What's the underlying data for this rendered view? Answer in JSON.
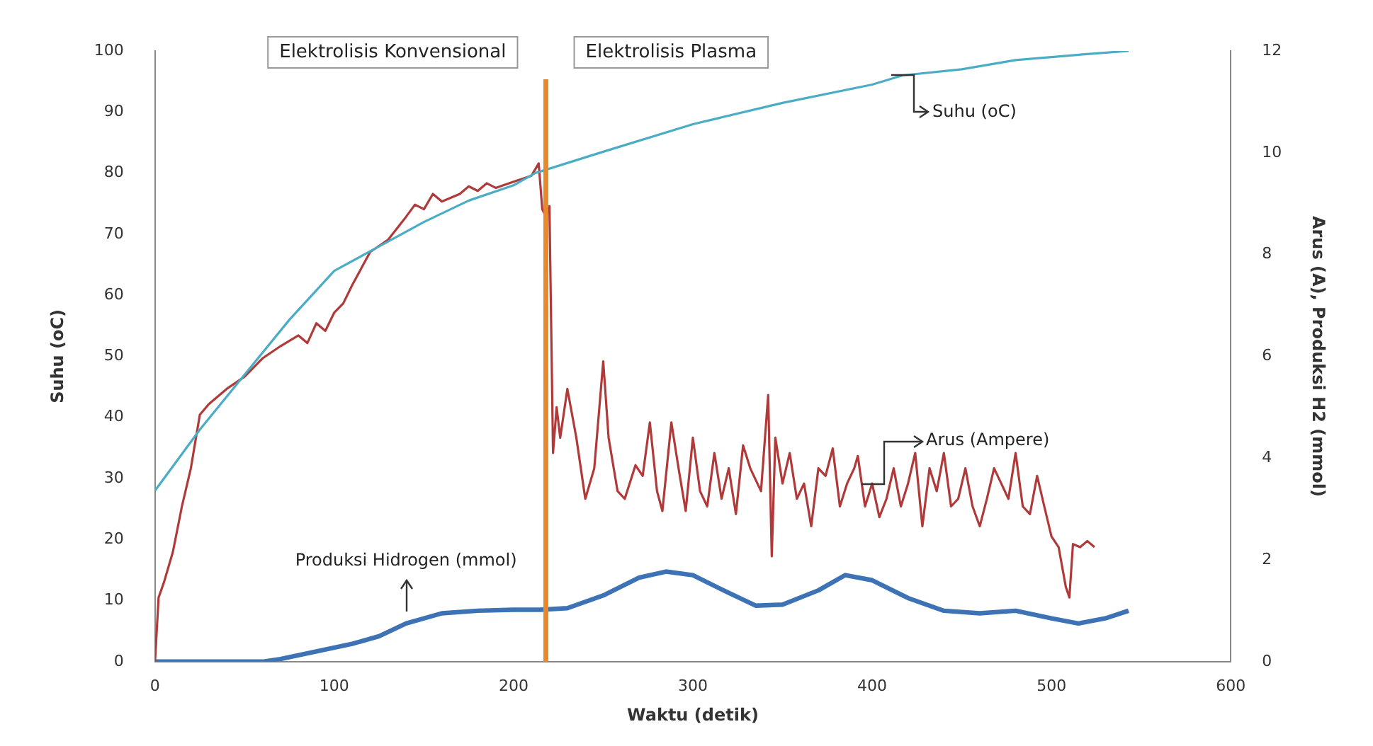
{
  "chart_data": {
    "type": "line",
    "xlabel": "Waktu (detik)",
    "ylabel": "Suhu (oC)",
    "y2label": "Arus (A), Produksi H2 (mmol)",
    "xlim": [
      0,
      600
    ],
    "xticks": [
      0,
      100,
      200,
      300,
      400,
      500,
      600
    ],
    "ylim": [
      0,
      100
    ],
    "yticks": [
      0,
      10,
      20,
      30,
      40,
      50,
      60,
      70,
      80,
      90,
      100
    ],
    "y2lim": [
      0,
      12
    ],
    "y2ticks": [
      0,
      2,
      4,
      6,
      8,
      10,
      12
    ],
    "grid": false,
    "legend": false,
    "marker": "none",
    "line_style": "solid",
    "annotations": [
      "Elektrolisis Konvensional",
      "Elektrolisis Plasma"
    ],
    "ref_lines": [
      {
        "axis": "x",
        "value": 218,
        "color": "#e8892c"
      }
    ],
    "series": [
      {
        "name": "Suhu (oC)",
        "color": "#4bacc6",
        "x": [
          0,
          25,
          50,
          75,
          100,
          125,
          150,
          175,
          200,
          212,
          250,
          300,
          350,
          400,
          417,
          450,
          480,
          500,
          520,
          543
        ],
        "values": [
          28,
          38,
          47,
          56,
          64,
          68,
          72,
          75.5,
          78,
          80,
          83.5,
          88,
          91.5,
          94.5,
          96,
          97,
          98.5,
          99,
          99.5,
          100
        ]
      },
      {
        "name": "Arus (Ampere)",
        "color": "#b03a3a",
        "axis": "y2",
        "x": [
          0,
          2,
          5,
          10,
          15,
          20,
          25,
          30,
          40,
          50,
          60,
          70,
          80,
          85,
          90,
          95,
          100,
          105,
          110,
          120,
          130,
          140,
          145,
          150,
          155,
          160,
          170,
          175,
          180,
          185,
          190,
          200,
          210,
          214,
          216,
          218,
          220,
          222,
          224,
          226,
          230,
          235,
          240,
          245,
          250,
          253,
          258,
          262,
          268,
          272,
          276,
          280,
          283,
          288,
          292,
          296,
          300,
          304,
          308,
          312,
          316,
          320,
          324,
          328,
          332,
          336,
          338,
          342,
          344,
          346,
          350,
          354,
          358,
          362,
          366,
          370,
          374,
          378,
          382,
          386,
          390,
          392,
          396,
          400,
          404,
          408,
          412,
          416,
          420,
          424,
          428,
          432,
          436,
          440,
          444,
          448,
          452,
          456,
          460,
          464,
          468,
          472,
          476,
          480,
          484,
          488,
          492,
          496,
          500,
          504,
          508,
          510,
          512,
          516,
          520,
          524
        ],
        "values": [
          0,
          1.26,
          1.56,
          2.16,
          3.05,
          3.8,
          4.85,
          5.06,
          5.36,
          5.6,
          5.96,
          6.2,
          6.41,
          6.26,
          6.65,
          6.5,
          6.86,
          7.04,
          7.4,
          8.05,
          8.29,
          8.74,
          8.98,
          8.89,
          9.19,
          9.04,
          9.19,
          9.34,
          9.25,
          9.4,
          9.31,
          9.43,
          9.55,
          9.79,
          8.89,
          8.74,
          8.95,
          4.1,
          5.0,
          4.4,
          5.36,
          4.4,
          3.2,
          3.8,
          5.9,
          4.4,
          3.35,
          3.2,
          3.86,
          3.65,
          4.7,
          3.35,
          2.96,
          4.7,
          3.8,
          2.96,
          4.4,
          3.35,
          3.05,
          4.1,
          3.2,
          3.8,
          2.9,
          4.25,
          3.8,
          3.5,
          3.35,
          5.24,
          2.07,
          4.4,
          3.5,
          4.1,
          3.2,
          3.5,
          2.66,
          3.8,
          3.65,
          4.19,
          3.05,
          3.5,
          3.8,
          4.04,
          3.05,
          3.5,
          2.84,
          3.2,
          3.8,
          3.05,
          3.5,
          4.1,
          2.66,
          3.8,
          3.35,
          4.1,
          3.05,
          3.2,
          3.8,
          3.05,
          2.66,
          3.2,
          3.8,
          3.5,
          3.2,
          4.1,
          3.05,
          2.9,
          3.65,
          3.05,
          2.46,
          2.25,
          1.47,
          1.26,
          2.31,
          2.25,
          2.37,
          2.25
        ]
      },
      {
        "name": "Produksi Hidrogen (mmol)",
        "color": "#3d72b4",
        "axis": "y2",
        "x": [
          0,
          60,
          70,
          90,
          110,
          125,
          140,
          160,
          180,
          200,
          215,
          230,
          250,
          270,
          285,
          300,
          320,
          335,
          350,
          370,
          385,
          400,
          420,
          440,
          460,
          480,
          500,
          515,
          530,
          543
        ],
        "values": [
          0,
          0,
          0.05,
          0.2,
          0.35,
          0.5,
          0.75,
          0.95,
          1.0,
          1.02,
          1.02,
          1.05,
          1.3,
          1.65,
          1.77,
          1.7,
          1.35,
          1.1,
          1.12,
          1.4,
          1.7,
          1.6,
          1.25,
          1.0,
          0.95,
          1.0,
          0.85,
          0.75,
          0.85,
          1.0
        ]
      }
    ]
  }
}
